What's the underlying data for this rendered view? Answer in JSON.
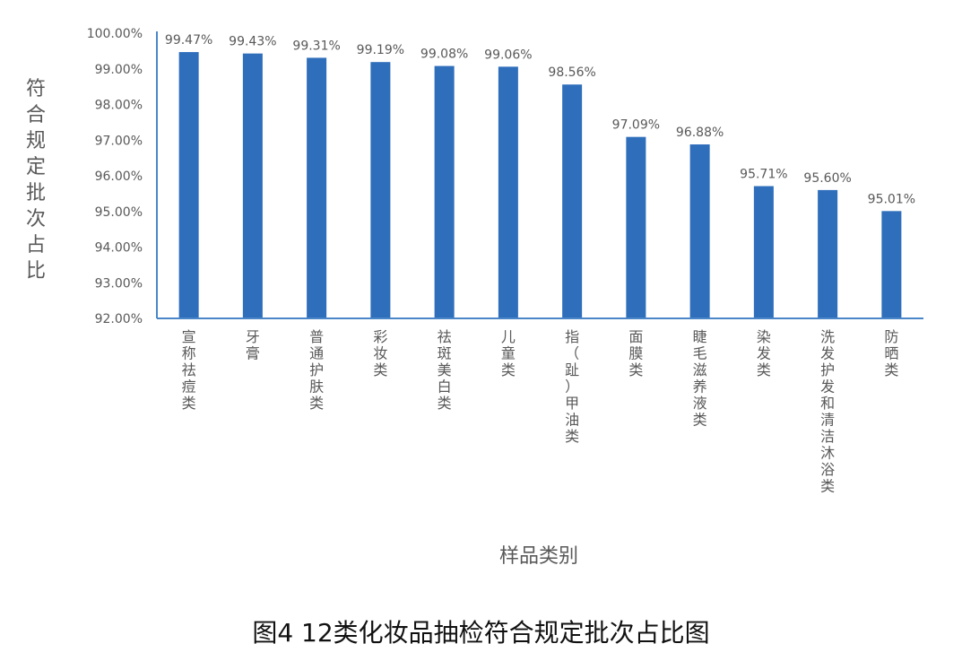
{
  "chart_data": {
    "type": "bar",
    "title": "图4  12类化妆品抽检符合规定批次占比图",
    "xlabel": "样品类别",
    "ylabel": "符合规定批次占比",
    "categories": [
      "宣称祛痘类",
      "牙膏",
      "普通护肤类",
      "彩妆类",
      "祛斑美白类",
      "儿童类",
      "指（趾）甲油类",
      "面膜类",
      "睫毛滋养液类",
      "染发类",
      "洗发护发和清洁沐浴类",
      "防晒类"
    ],
    "values": [
      99.47,
      99.43,
      99.31,
      99.19,
      99.08,
      99.06,
      98.56,
      97.09,
      96.88,
      95.71,
      95.6,
      95.01
    ],
    "data_labels": [
      "99.47%",
      "99.43%",
      "99.31%",
      "99.19%",
      "99.08%",
      "99.06%",
      "98.56%",
      "97.09%",
      "96.88%",
      "95.71%",
      "95.60%",
      "95.01%"
    ],
    "yticks": [
      "92.00%",
      "93.00%",
      "94.00%",
      "95.00%",
      "96.00%",
      "97.00%",
      "98.00%",
      "99.00%",
      "100.00%"
    ],
    "ylim": [
      92,
      100
    ],
    "grid": false,
    "legend": "none",
    "colors": {
      "bar": "#2e6ebb",
      "axis": "#4a86c8",
      "text": "#595959"
    }
  },
  "caption": "图4  12类化妆品抽检符合规定批次占比图"
}
